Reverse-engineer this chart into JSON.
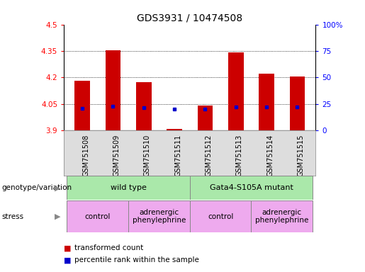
{
  "title": "GDS3931 / 10474508",
  "samples": [
    "GSM751508",
    "GSM751509",
    "GSM751510",
    "GSM751511",
    "GSM751512",
    "GSM751513",
    "GSM751514",
    "GSM751515"
  ],
  "bar_tops": [
    4.18,
    4.355,
    4.175,
    3.91,
    4.04,
    4.34,
    4.22,
    4.205
  ],
  "bar_bottom": 3.9,
  "blue_y": [
    4.024,
    4.038,
    4.03,
    4.022,
    4.022,
    4.033,
    4.032,
    4.032
  ],
  "ylim": [
    3.9,
    4.5
  ],
  "y2lim": [
    0,
    100
  ],
  "yticks": [
    3.9,
    4.05,
    4.2,
    4.35,
    4.5
  ],
  "y2ticks": [
    0,
    25,
    50,
    75,
    100
  ],
  "ytick_labels": [
    "3.9",
    "4.05",
    "4.2",
    "4.35",
    "4.5"
  ],
  "y2tick_labels": [
    "0",
    "25",
    "50",
    "75",
    "100%"
  ],
  "bar_color": "#cc0000",
  "blue_color": "#0000cc",
  "bar_width": 0.5,
  "grid_lines": [
    4.05,
    4.2,
    4.35
  ],
  "genotype_groups": [
    {
      "label": "wild type",
      "start": 0,
      "end": 3,
      "color": "#aae8aa"
    },
    {
      "label": "Gata4-S105A mutant",
      "start": 4,
      "end": 7,
      "color": "#aae8aa"
    }
  ],
  "stress_groups": [
    {
      "label": "control",
      "start": 0,
      "end": 1,
      "color": "#eeaaee"
    },
    {
      "label": "adrenergic\nphenylephrine",
      "start": 2,
      "end": 3,
      "color": "#eeaaee"
    },
    {
      "label": "control",
      "start": 4,
      "end": 5,
      "color": "#eeaaee"
    },
    {
      "label": "adrenergic\nphenylephrine",
      "start": 6,
      "end": 7,
      "color": "#eeaaee"
    }
  ],
  "legend_items": [
    {
      "label": "transformed count",
      "color": "#cc0000"
    },
    {
      "label": "percentile rank within the sample",
      "color": "#0000cc"
    }
  ],
  "title_fontsize": 10,
  "tick_fontsize": 7.5,
  "sample_fontsize": 7,
  "anno_fontsize": 7.5,
  "geno_label_fontsize": 7.5,
  "stress_label_fontsize": 7.5,
  "legend_fontsize": 7.5
}
